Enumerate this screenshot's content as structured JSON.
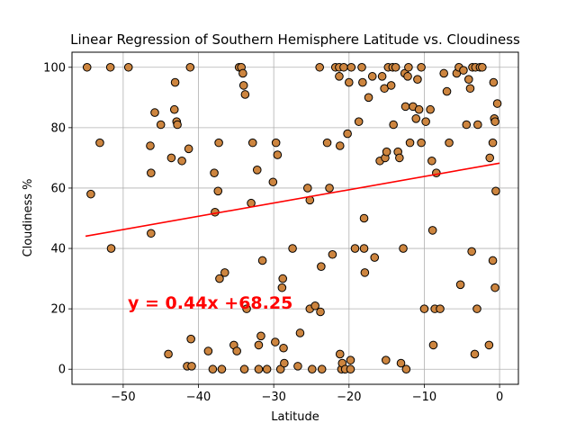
{
  "chart_data": {
    "type": "scatter",
    "title": "Linear Regression of Southern Hemisphere Latitude vs. Cloudiness",
    "xlabel": "Latitude",
    "ylabel": "Cloudiness %",
    "xlim": [
      -56.8,
      2.5
    ],
    "ylim": [
      -5,
      105
    ],
    "xticks": [
      -50,
      -40,
      -30,
      -20,
      -10,
      0
    ],
    "yticks": [
      0,
      20,
      40,
      60,
      80,
      100
    ],
    "grid": true,
    "marker_color": "#cd853f",
    "marker_edge_color": "#000000",
    "regression": {
      "slope": 0.44,
      "intercept": 68.25,
      "x_range": [
        -55,
        0
      ],
      "color": "#ff0000",
      "equation_label": "y = 0.44x +68.25"
    },
    "series": [
      {
        "points": [
          [
            -54.8,
            100
          ],
          [
            -54.3,
            58
          ],
          [
            -53.1,
            75
          ],
          [
            -51.7,
            100
          ],
          [
            -51.6,
            40
          ],
          [
            -49.3,
            100
          ],
          [
            -46.4,
            74
          ],
          [
            -46.3,
            65
          ],
          [
            -46.3,
            45
          ],
          [
            -45.8,
            85
          ],
          [
            -45.0,
            81
          ],
          [
            -44.0,
            5
          ],
          [
            -43.6,
            70
          ],
          [
            -43.2,
            86
          ],
          [
            -43.1,
            95
          ],
          [
            -42.9,
            82
          ],
          [
            -42.8,
            81
          ],
          [
            -42.2,
            69
          ],
          [
            -41.5,
            1
          ],
          [
            -41.3,
            73
          ],
          [
            -41.1,
            100
          ],
          [
            -41.0,
            10
          ],
          [
            -40.9,
            1
          ],
          [
            -38.7,
            6
          ],
          [
            -38.1,
            0
          ],
          [
            -37.9,
            65
          ],
          [
            -37.8,
            52
          ],
          [
            -37.4,
            59
          ],
          [
            -37.3,
            75
          ],
          [
            -37.2,
            30
          ],
          [
            -36.9,
            0
          ],
          [
            -36.5,
            32
          ],
          [
            -35.3,
            8
          ],
          [
            -34.9,
            6
          ],
          [
            -34.6,
            100
          ],
          [
            -34.3,
            100
          ],
          [
            -34.1,
            98
          ],
          [
            -34.0,
            94
          ],
          [
            -33.8,
            91
          ],
          [
            -33.9,
            0
          ],
          [
            -33.6,
            20
          ],
          [
            -33.0,
            55
          ],
          [
            -32.8,
            75
          ],
          [
            -32.2,
            66
          ],
          [
            -32.0,
            8
          ],
          [
            -32.0,
            0
          ],
          [
            -31.7,
            11
          ],
          [
            -31.5,
            36
          ],
          [
            -30.9,
            0
          ],
          [
            -30.1,
            62
          ],
          [
            -29.8,
            9
          ],
          [
            -29.7,
            75
          ],
          [
            -29.5,
            71
          ],
          [
            -29.1,
            0
          ],
          [
            -28.9,
            27
          ],
          [
            -28.8,
            30
          ],
          [
            -28.7,
            7
          ],
          [
            -28.6,
            2
          ],
          [
            -27.5,
            40
          ],
          [
            -26.8,
            1
          ],
          [
            -26.5,
            12
          ],
          [
            -25.5,
            60
          ],
          [
            -25.2,
            56
          ],
          [
            -25.2,
            20
          ],
          [
            -24.9,
            0
          ],
          [
            -24.5,
            21
          ],
          [
            -23.9,
            100
          ],
          [
            -23.8,
            19
          ],
          [
            -23.7,
            34
          ],
          [
            -23.6,
            0
          ],
          [
            -22.9,
            75
          ],
          [
            -22.6,
            60
          ],
          [
            -22.2,
            38
          ],
          [
            -21.8,
            100
          ],
          [
            -21.3,
            97
          ],
          [
            -21.3,
            100
          ],
          [
            -21.2,
            74
          ],
          [
            -21.2,
            5
          ],
          [
            -21.0,
            0
          ],
          [
            -20.9,
            2
          ],
          [
            -20.7,
            100
          ],
          [
            -20.5,
            0
          ],
          [
            -20.2,
            78
          ],
          [
            -20.0,
            95
          ],
          [
            -19.8,
            0
          ],
          [
            -19.8,
            3
          ],
          [
            -19.7,
            100
          ],
          [
            -19.2,
            40
          ],
          [
            -18.7,
            82
          ],
          [
            -18.3,
            100
          ],
          [
            -18.2,
            95
          ],
          [
            -18.0,
            50
          ],
          [
            -18.0,
            40
          ],
          [
            -17.9,
            32
          ],
          [
            -17.4,
            90
          ],
          [
            -16.9,
            97
          ],
          [
            -16.6,
            37
          ],
          [
            -15.9,
            69
          ],
          [
            -15.6,
            97
          ],
          [
            -15.3,
            93
          ],
          [
            -15.2,
            70
          ],
          [
            -15.1,
            3
          ],
          [
            -15.0,
            72
          ],
          [
            -14.8,
            100
          ],
          [
            -14.4,
            94
          ],
          [
            -14.2,
            100
          ],
          [
            -14.1,
            81
          ],
          [
            -13.8,
            100
          ],
          [
            -13.5,
            72
          ],
          [
            -13.3,
            70
          ],
          [
            -13.1,
            2
          ],
          [
            -12.8,
            40
          ],
          [
            -12.6,
            98
          ],
          [
            -12.5,
            87
          ],
          [
            -12.4,
            0
          ],
          [
            -12.2,
            97
          ],
          [
            -12.1,
            100
          ],
          [
            -11.9,
            75
          ],
          [
            -11.5,
            87
          ],
          [
            -11.1,
            83
          ],
          [
            -10.9,
            96
          ],
          [
            -10.7,
            86
          ],
          [
            -10.4,
            75
          ],
          [
            -10.4,
            100
          ],
          [
            -10.0,
            20
          ],
          [
            -9.8,
            82
          ],
          [
            -9.2,
            86
          ],
          [
            -9.0,
            69
          ],
          [
            -8.9,
            46
          ],
          [
            -8.8,
            8
          ],
          [
            -8.6,
            20
          ],
          [
            -8.4,
            65
          ],
          [
            -7.9,
            20
          ],
          [
            -7.4,
            98
          ],
          [
            -7.0,
            92
          ],
          [
            -6.7,
            75
          ],
          [
            -5.7,
            98
          ],
          [
            -5.4,
            100
          ],
          [
            -5.2,
            28
          ],
          [
            -4.8,
            99
          ],
          [
            -4.4,
            81
          ],
          [
            -4.1,
            96
          ],
          [
            -3.9,
            93
          ],
          [
            -3.7,
            39
          ],
          [
            -3.6,
            100
          ],
          [
            -3.3,
            5
          ],
          [
            -3.2,
            100
          ],
          [
            -3.0,
            20
          ],
          [
            -2.9,
            81
          ],
          [
            -2.6,
            100
          ],
          [
            -2.3,
            100
          ],
          [
            -1.4,
            8
          ],
          [
            -1.3,
            70
          ],
          [
            -0.9,
            75
          ],
          [
            -0.9,
            36
          ],
          [
            -0.8,
            95
          ],
          [
            -0.7,
            83
          ],
          [
            -0.6,
            27
          ],
          [
            -0.6,
            82
          ],
          [
            -0.5,
            59
          ],
          [
            -0.3,
            88
          ]
        ]
      }
    ]
  }
}
